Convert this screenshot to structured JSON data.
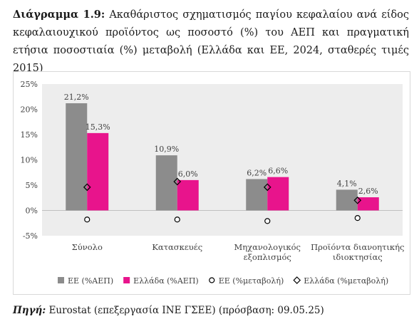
{
  "title": {
    "label": "Διάγραμμα 1.9:",
    "text": "Ακαθάριστος σχηματισμός παγίου κεφαλαίου ανά είδος κεφαλαιουχικού προϊόντος ως ποσοστό (%) του ΑΕΠ και πραγματική ετήσια ποσοστιαία (%) μεταβολή (Ελλάδα και ΕΕ, 2024, σταθερές τιμές 2015)"
  },
  "source": {
    "label": "Πηγή:",
    "text": "Eurostat (επεξεργασία ΙΝΕ ΓΣΕΕ) (πρόσβαση: 09.05.25)"
  },
  "chart_data": {
    "type": "bar",
    "categories": [
      "Σύνολο",
      "Κατασκευές",
      "Μηχανολογικός εξοπλισμός",
      "Προϊόντα διανοητικής ιδιοκτησίας"
    ],
    "category_lines": [
      [
        "Σύνολο"
      ],
      [
        "Κατασκευές"
      ],
      [
        "Μηχανολογικός",
        "εξοπλισμός"
      ],
      [
        "Προϊόντα διανοητικής",
        "ιδιοκτησίας"
      ]
    ],
    "series": [
      {
        "name": "ΕΕ (%ΑΕΠ)",
        "kind": "bar",
        "color": "#8c8c8c",
        "values": [
          21.2,
          10.9,
          6.2,
          4.1
        ],
        "labels": [
          "21,2%",
          "10,9%",
          "6,2%",
          "4,1%"
        ]
      },
      {
        "name": "Ελλάδα (%ΑΕΠ)",
        "kind": "bar",
        "color": "#e8148c",
        "values": [
          15.3,
          6.0,
          6.6,
          2.6
        ],
        "labels": [
          "15,3%",
          "6,0%",
          "6,6%",
          "2,6%"
        ]
      },
      {
        "name": "ΕΕ (%μεταβολή)",
        "kind": "marker-circle",
        "color": "#000000",
        "values": [
          -1.8,
          -1.8,
          -2.1,
          -1.5
        ]
      },
      {
        "name": "Ελλάδα (%μεταβολή)",
        "kind": "marker-diamond",
        "color": "#000000",
        "values": [
          4.6,
          5.7,
          4.6,
          2.0
        ]
      }
    ],
    "y_ticks": [
      -5,
      0,
      5,
      10,
      15,
      20,
      25
    ],
    "y_tick_labels": [
      "-5%",
      "0%",
      "5%",
      "10%",
      "15%",
      "20%",
      "25%"
    ],
    "ylim": [
      -5,
      25
    ],
    "grid": false,
    "legend_position": "bottom",
    "plot_background": "#ededed"
  }
}
